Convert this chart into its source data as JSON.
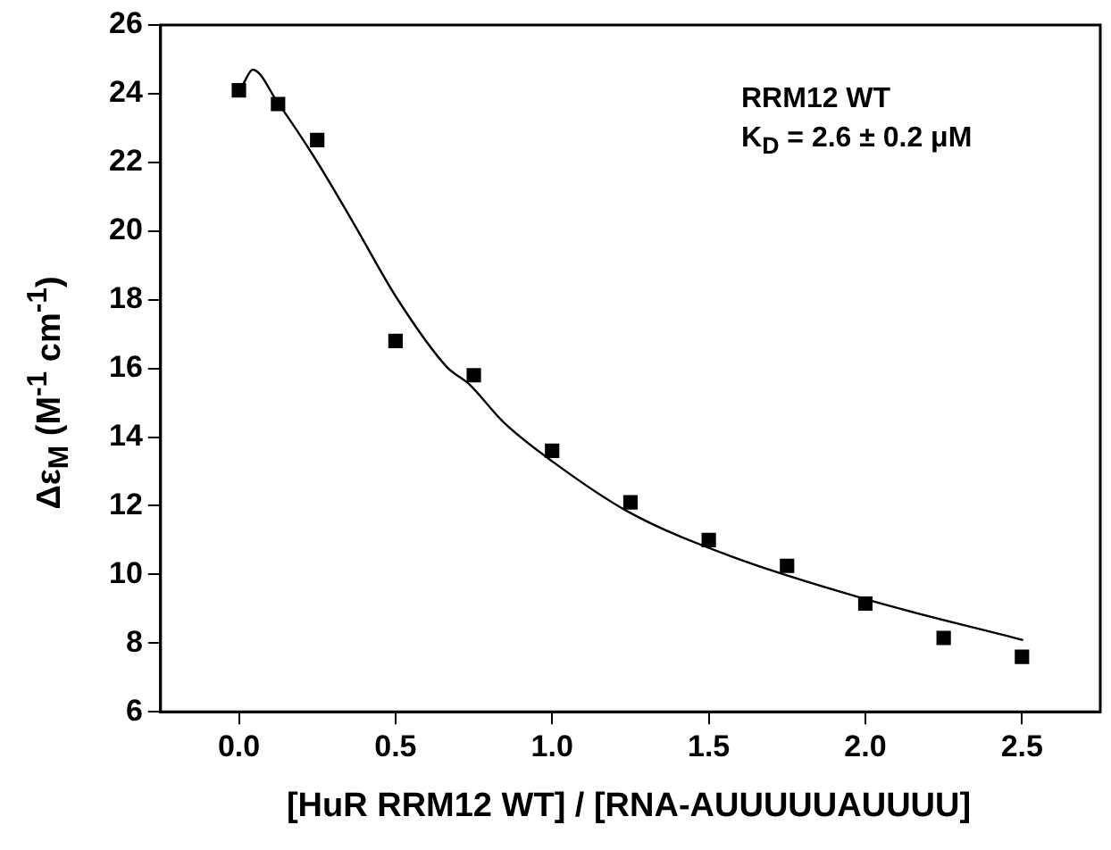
{
  "chart_data": {
    "type": "scatter",
    "xlabel": "[HuR RRM12 WT] / [RNA-AUUUUUAUUUU]",
    "ylabel": "Δε$_{M}$ (M$^{-1}$ cm$^{-1}$)",
    "annotations": [
      "RRM12 WT",
      "K$_{D}$ = 2.6 ± 0.2 μM"
    ],
    "series": [
      {
        "color": "#000000",
        "marker": "square",
        "x": [
          0,
          0.125,
          0.25,
          0.5,
          0.75,
          1,
          1.25,
          1.5,
          1.75,
          2,
          2.25,
          2.5
        ],
        "values": [
          24.1,
          23.7,
          22.65,
          16.8,
          15.8,
          13.6,
          12.1,
          11.0,
          10.25,
          9.15,
          8.15,
          7.6
        ]
      },
      {
        "type": "line",
        "color": "#000000",
        "marker": "none",
        "x": [
          0.014,
          0.044,
          0.124,
          0.244,
          0.364,
          0.504,
          0.664,
          0.734,
          0.844,
          1.004,
          1.244,
          1.564,
          2.004,
          2.504
        ],
        "values": [
          24.29,
          24.7,
          23.74,
          22.1,
          20.26,
          18.05,
          16.04,
          15.55,
          14.44,
          13.27,
          11.82,
          10.55,
          9.27,
          8.09
        ]
      }
    ],
    "xlim": [
      -0.25,
      2.75
    ],
    "xticks": [
      {
        "value": 0,
        "label": "0.0"
      },
      0.5,
      {
        "value": 1,
        "label": "1.0"
      },
      1.5,
      {
        "value": 2,
        "label": "2.0"
      },
      2.5
    ],
    "ylim": [
      6,
      26
    ],
    "yticks": [
      6,
      8,
      10,
      12,
      14,
      16,
      18,
      20,
      22,
      24,
      26
    ],
    "grid": false,
    "legend": false
  }
}
